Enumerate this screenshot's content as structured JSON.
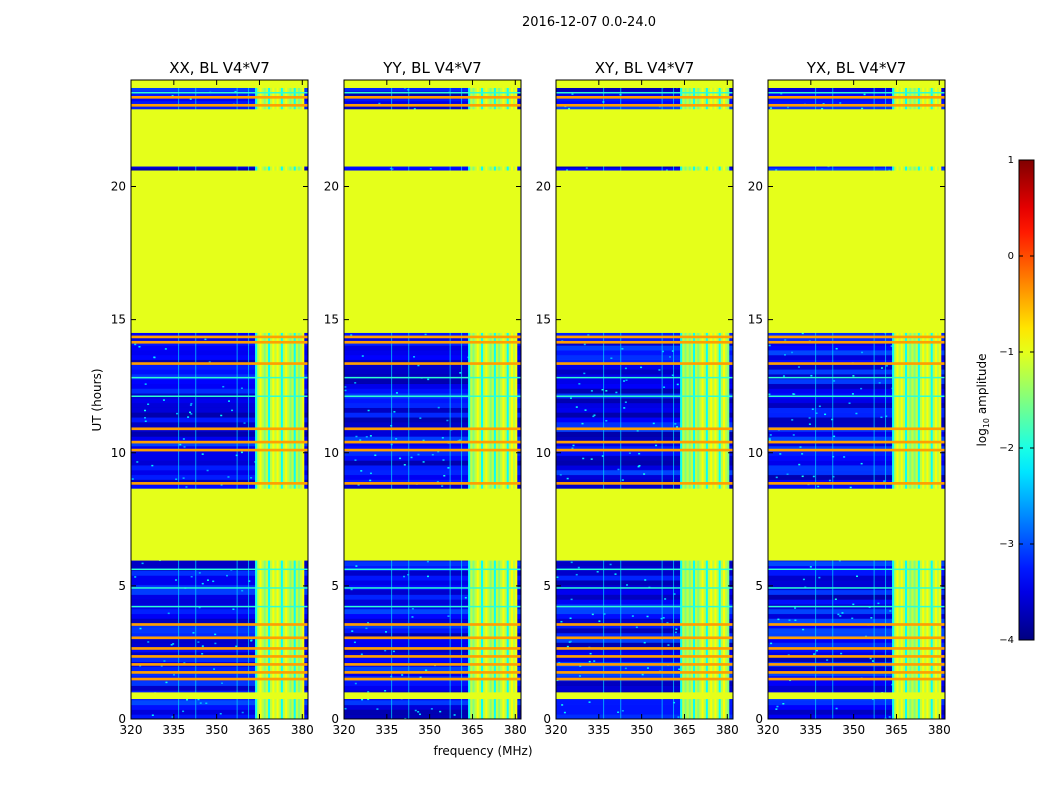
{
  "chart_data": {
    "type": "heatmap",
    "title": "2016-12-07 0.0-24.0",
    "xlabel": "frequency (MHz)",
    "ylabel": "UT (hours)",
    "xlim": [
      320,
      382
    ],
    "ylim": [
      0,
      24
    ],
    "xticks": [
      "320",
      "335",
      "350",
      "365",
      "380"
    ],
    "yticks": [
      "0",
      "5",
      "10",
      "15",
      "20"
    ],
    "colorbar": {
      "label_main": "log",
      "label_sub": "10",
      "label_rest": " amplitude",
      "range": [
        -4,
        1
      ],
      "ticks": [
        "1",
        "0",
        "−1",
        "−2",
        "−3",
        "−4"
      ],
      "colormap": "jet"
    },
    "panels": [
      {
        "title": "XX, BL V4*V7"
      },
      {
        "title": "YY, BL V4*V7"
      },
      {
        "title": "XY, BL V4*V7"
      },
      {
        "title": "YX, BL V4*V7"
      }
    ],
    "flagged_hours": [
      [
        0.75,
        1.0
      ],
      [
        5.95,
        8.65
      ],
      [
        14.5,
        20.6
      ],
      [
        20.75,
        22.9
      ],
      [
        23.7,
        24.0
      ]
    ],
    "flagged_value": -1.0,
    "rfi_hours": [
      1.45,
      1.7,
      2.0,
      2.3,
      2.6,
      3.0,
      3.5,
      8.8,
      10.05,
      10.35,
      10.85,
      13.3,
      14.1,
      14.3,
      23.0,
      23.3
    ],
    "rfi_value": -0.4,
    "background_value": -3.4,
    "signal_band_mhz": [
      363.5,
      380.5
    ],
    "signal_value": -1.2
  }
}
